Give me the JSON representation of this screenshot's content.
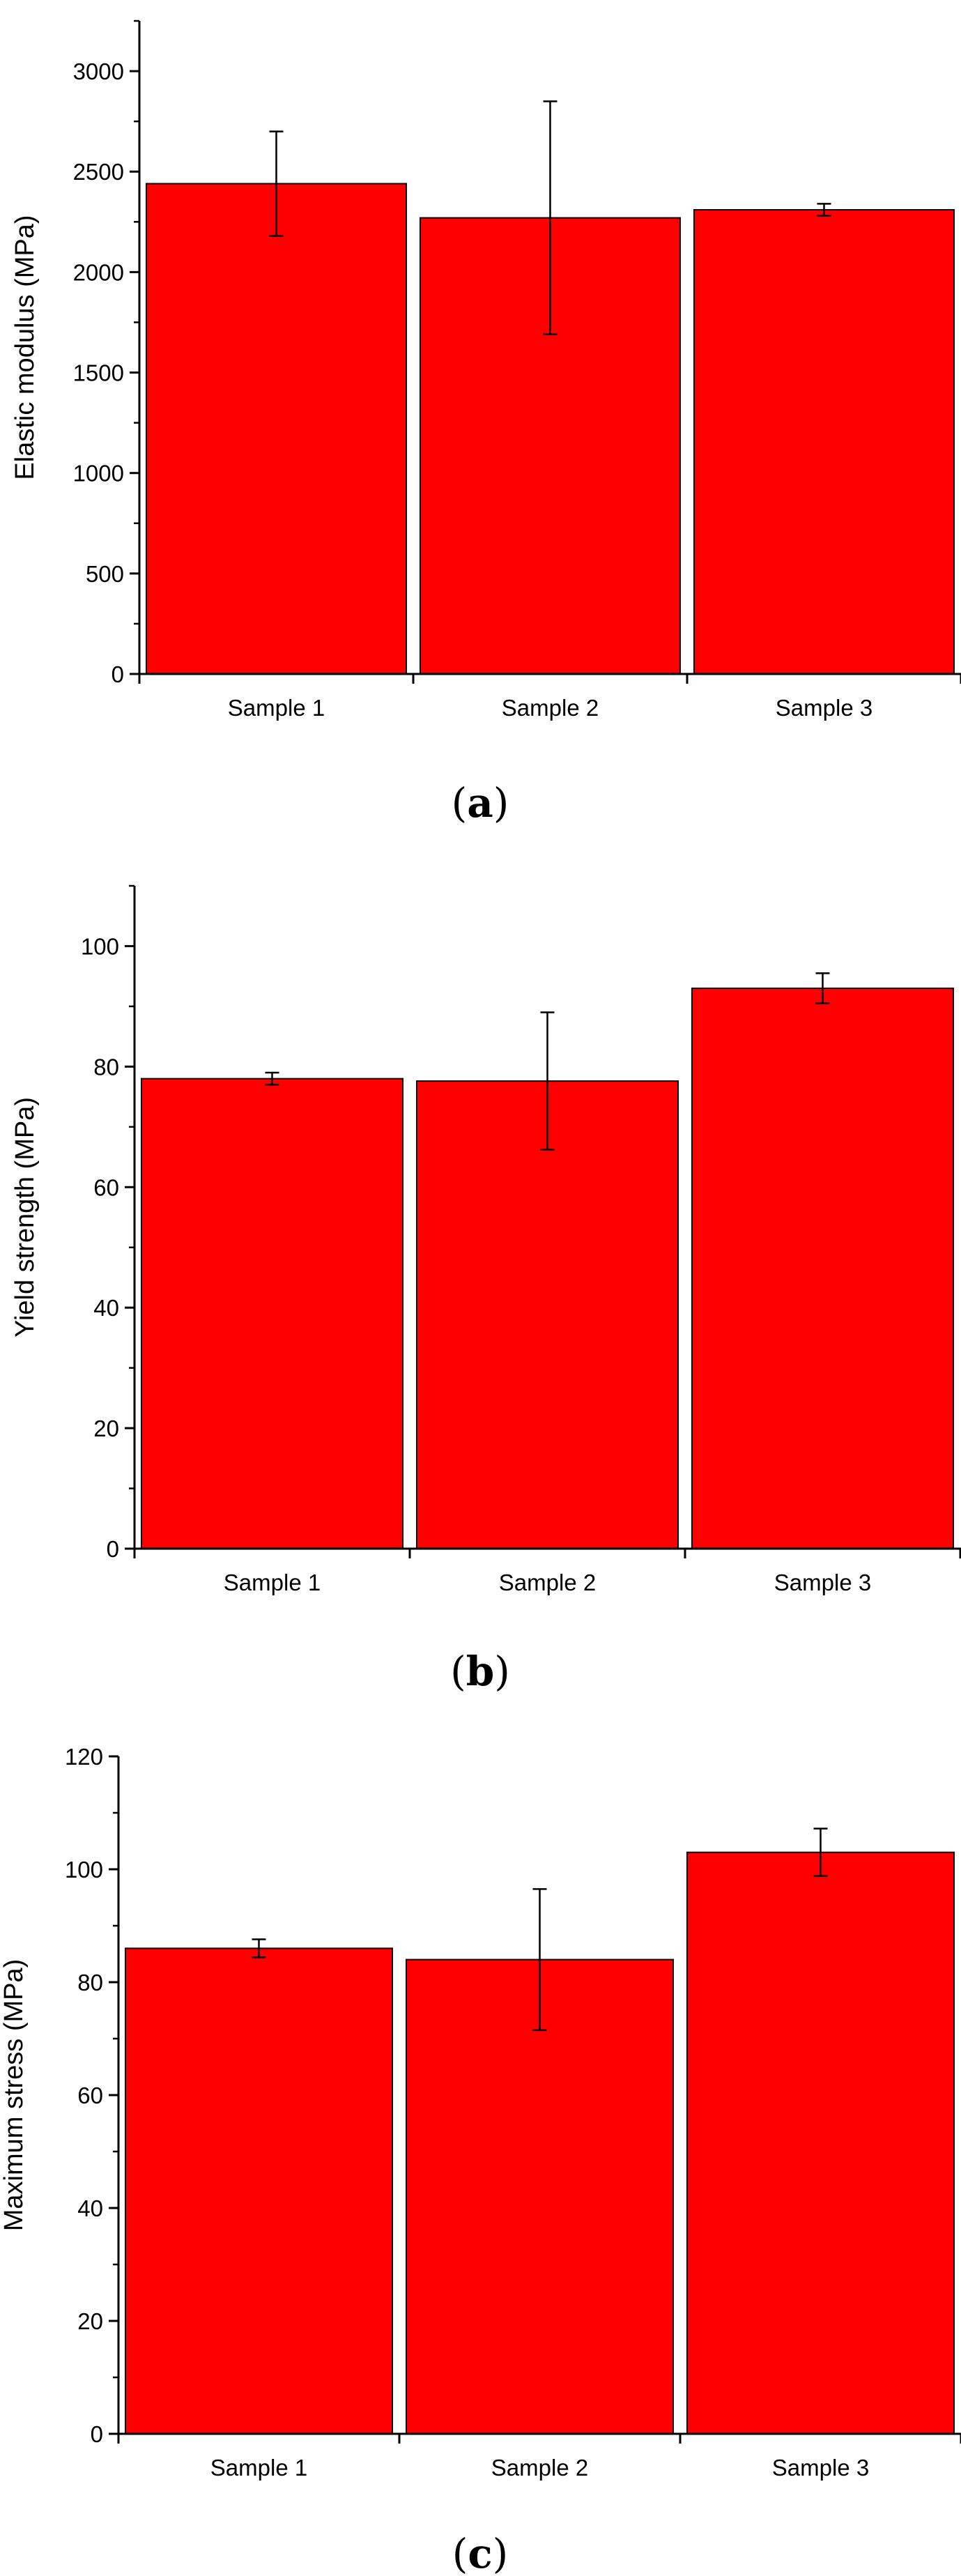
{
  "colors": {
    "bar_fill": "#ff0000",
    "bar_stroke": "#000000",
    "axis": "#000000"
  },
  "chart_data": [
    {
      "type": "bar",
      "title": "",
      "caption_letter": "a",
      "ylabel": "Elastic modulus (MPa)",
      "xlabel": "",
      "categories": [
        "Sample 1",
        "Sample 2",
        "Sample 3"
      ],
      "values": [
        2440,
        2270,
        2310
      ],
      "error": [
        260,
        580,
        30
      ],
      "ylim": [
        0,
        3250
      ],
      "yticks": [
        0,
        500,
        1000,
        1500,
        2000,
        2500,
        3000
      ],
      "grid": false
    },
    {
      "type": "bar",
      "title": "",
      "caption_letter": "b",
      "ylabel": "Yield strength (MPa)",
      "xlabel": "",
      "categories": [
        "Sample 1",
        "Sample 2",
        "Sample 3"
      ],
      "values": [
        78,
        77.6,
        93
      ],
      "error": [
        1,
        11.4,
        2.5
      ],
      "ylim": [
        0,
        110
      ],
      "yticks": [
        0,
        20,
        40,
        60,
        80,
        100
      ],
      "grid": false
    },
    {
      "type": "bar",
      "title": "",
      "caption_letter": "c",
      "ylabel": "Maximum stress (MPa)",
      "xlabel": "",
      "categories": [
        "Sample 1",
        "Sample 2",
        "Sample 3"
      ],
      "values": [
        86,
        84,
        103
      ],
      "error": [
        1.6,
        12.5,
        4.2
      ],
      "ylim": [
        0,
        120
      ],
      "yticks": [
        0,
        20,
        40,
        60,
        80,
        100,
        120
      ],
      "grid": false
    }
  ]
}
